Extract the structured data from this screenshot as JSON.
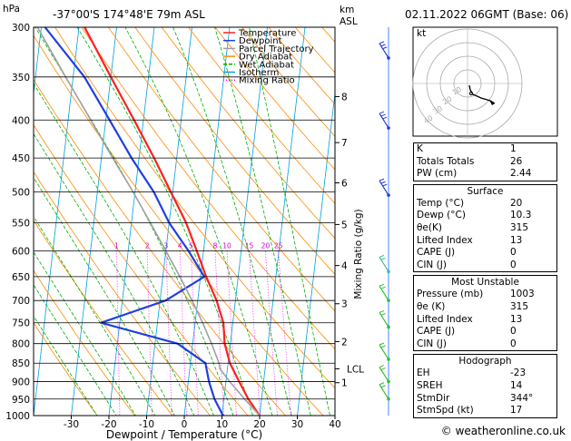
{
  "header": {
    "location": "-37°00'S  174°48'E  79m  ASL",
    "datetime": "02.11.2022  06GMT  (Base: 06)",
    "hpa_label": "hPa",
    "km_label": "km",
    "asl_label": "ASL"
  },
  "chart_data": {
    "type": "line",
    "chart_kind": "skew-T log-P",
    "xlabel": "Dewpoint / Temperature (°C)",
    "ylabel_right": "Mixing Ratio (g/kg)",
    "x_ticks": [
      -30,
      -20,
      -10,
      0,
      10,
      20,
      30,
      40
    ],
    "xlim": [
      -40,
      40
    ],
    "pressure_ticks": [
      300,
      350,
      400,
      450,
      500,
      550,
      600,
      650,
      700,
      750,
      800,
      850,
      900,
      950,
      1000
    ],
    "ylim": [
      1000,
      300
    ],
    "y_scale": "log",
    "km_ticks": [
      {
        "label": "1",
        "p": 903
      },
      {
        "label": "2",
        "p": 795
      },
      {
        "label": "3",
        "p": 707
      },
      {
        "label": "4",
        "p": 628
      },
      {
        "label": "5",
        "p": 553
      },
      {
        "label": "6",
        "p": 486
      },
      {
        "label": "7",
        "p": 429
      },
      {
        "label": "8",
        "p": 372
      }
    ],
    "lcl": {
      "label": "LCL",
      "p": 865
    },
    "mixing_ratio_labels": [
      "1",
      "2",
      "3",
      "4",
      "5",
      "8",
      "10",
      "15",
      "20",
      "25"
    ],
    "legend": [
      {
        "name": "Temperature",
        "color": "#ff2020"
      },
      {
        "name": "Dewpoint",
        "color": "#2040e0"
      },
      {
        "name": "Parcel Trajectory",
        "color": "#a0a0a0"
      },
      {
        "name": "Dry Adiabat",
        "color": "#ff8c00"
      },
      {
        "name": "Wet Adiabat",
        "color": "#00b000"
      },
      {
        "name": "Isotherm",
        "color": "#00a0e0"
      },
      {
        "name": "Mixing Ratio",
        "color": "#ff00ff"
      }
    ],
    "series": [
      {
        "name": "Temperature",
        "points": [
          [
            1000,
            20
          ],
          [
            950,
            16.5
          ],
          [
            900,
            13.5
          ],
          [
            850,
            10.5
          ],
          [
            800,
            8.5
          ],
          [
            750,
            7.5
          ],
          [
            700,
            5
          ],
          [
            650,
            1.5
          ],
          [
            600,
            -1.8
          ],
          [
            550,
            -5.5
          ],
          [
            500,
            -10.5
          ],
          [
            450,
            -16
          ],
          [
            400,
            -22.5
          ],
          [
            350,
            -30
          ],
          [
            300,
            -38.5
          ]
        ]
      },
      {
        "name": "Dewpoint",
        "points": [
          [
            1000,
            10.3
          ],
          [
            950,
            7.5
          ],
          [
            900,
            5.5
          ],
          [
            850,
            4
          ],
          [
            800,
            -4
          ],
          [
            750,
            -25
          ],
          [
            700,
            -8.5
          ],
          [
            650,
            1
          ],
          [
            600,
            -4
          ],
          [
            550,
            -10
          ],
          [
            500,
            -15
          ],
          [
            450,
            -22
          ],
          [
            400,
            -29
          ],
          [
            350,
            -37
          ],
          [
            300,
            -49
          ]
        ]
      },
      {
        "name": "Parcel Trajectory",
        "points": [
          [
            1000,
            20
          ],
          [
            950,
            15.5
          ],
          [
            900,
            11
          ],
          [
            865,
            8
          ],
          [
            850,
            7.6
          ],
          [
            800,
            5
          ],
          [
            750,
            2
          ],
          [
            700,
            -1.5
          ],
          [
            650,
            -5.5
          ],
          [
            600,
            -10
          ],
          [
            550,
            -15
          ],
          [
            500,
            -20.5
          ],
          [
            450,
            -27
          ],
          [
            400,
            -34
          ],
          [
            350,
            -42
          ],
          [
            300,
            -51
          ]
        ]
      }
    ],
    "dry_adiabat_thetas_K": [
      250,
      260,
      270,
      280,
      290,
      300,
      310,
      320,
      330,
      340,
      350,
      360,
      370,
      380,
      390,
      400,
      410,
      420,
      430
    ],
    "wet_adiabat_start_temps_C": [
      -20,
      -15,
      -10,
      -5,
      0,
      5,
      10,
      15,
      20,
      25,
      30,
      35,
      40
    ],
    "isotherms_C": [
      -110,
      -100,
      -90,
      -80,
      -70,
      -60,
      -50,
      -40,
      -30,
      -20,
      -10,
      0,
      10,
      20,
      30,
      40
    ],
    "wind_barbs_p": [
      330,
      410,
      505,
      640,
      700,
      760,
      840,
      900,
      950
    ]
  },
  "hodograph": {
    "label": "kt",
    "ring_labels": [
      "10",
      "20",
      "30",
      "40"
    ]
  },
  "indices": {
    "basic": [
      {
        "label": "K",
        "value": "1"
      },
      {
        "label": "Totals Totals",
        "value": "26"
      },
      {
        "label": "PW (cm)",
        "value": "2.44"
      }
    ],
    "surface": {
      "title": "Surface",
      "rows": [
        {
          "label": "Temp (°C)",
          "value": "20"
        },
        {
          "label": "Dewp (°C)",
          "value": "10.3"
        },
        {
          "label": "θe(K)",
          "value": "315"
        },
        {
          "label": "Lifted Index",
          "value": "13"
        },
        {
          "label": "CAPE (J)",
          "value": "0"
        },
        {
          "label": "CIN (J)",
          "value": "0"
        }
      ]
    },
    "most_unstable": {
      "title": "Most Unstable",
      "rows": [
        {
          "label": "Pressure (mb)",
          "value": "1003"
        },
        {
          "label": "θe (K)",
          "value": "315"
        },
        {
          "label": "Lifted Index",
          "value": "13"
        },
        {
          "label": "CAPE (J)",
          "value": "0"
        },
        {
          "label": "CIN (J)",
          "value": "0"
        }
      ]
    },
    "hodograph_params": {
      "title": "Hodograph",
      "rows": [
        {
          "label": "EH",
          "value": "-23"
        },
        {
          "label": "SREH",
          "value": "14"
        },
        {
          "label": "StmDir",
          "value": "344°"
        },
        {
          "label": "StmSpd (kt)",
          "value": "17"
        }
      ]
    }
  },
  "credit": "© weatheronline.co.uk"
}
